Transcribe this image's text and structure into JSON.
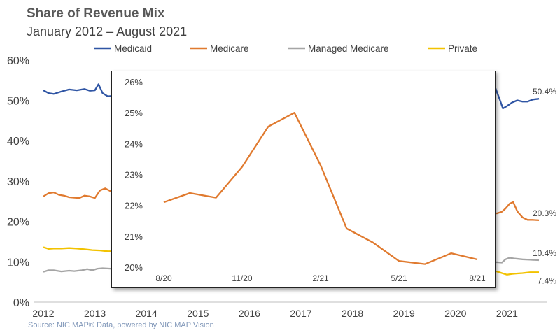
{
  "chart": {
    "title": "Share of Revenue Mix",
    "subtitle": "January 2012 – August 2021",
    "source": "Source: NIC MAP® Data, powered by NIC MAP Vision"
  },
  "chart_data": [
    {
      "type": "line",
      "title": "Share of Revenue Mix",
      "subtitle": "January 2012 – August 2021",
      "ylim": [
        0,
        60
      ],
      "y_ticks": [
        "0%",
        "10%",
        "20%",
        "30%",
        "40%",
        "50%",
        "60%"
      ],
      "x_ticks": [
        "2012",
        "2013",
        "2014",
        "2015",
        "2016",
        "2017",
        "2018",
        "2019",
        "2020",
        "2021"
      ],
      "legend_position": "top",
      "grid": false,
      "series": [
        {
          "name": "Medicaid",
          "color": "#2f55a4",
          "end_label": "50.4%",
          "segments": [
            [
              [
                2012.0,
                52.5
              ],
              [
                2012.1,
                51.8
              ],
              [
                2012.2,
                51.6
              ],
              [
                2012.35,
                52.2
              ],
              [
                2012.5,
                52.7
              ],
              [
                2012.65,
                52.5
              ],
              [
                2012.8,
                52.8
              ],
              [
                2012.9,
                52.4
              ],
              [
                2013.0,
                52.5
              ],
              [
                2013.07,
                54.0
              ],
              [
                2013.15,
                51.8
              ],
              [
                2013.25,
                51.0
              ],
              [
                2013.35,
                51.1
              ],
              [
                2013.45,
                51.8
              ],
              [
                2013.5,
                51.5
              ]
            ],
            [
              [
                2020.7,
                53.8
              ],
              [
                2020.78,
                52.9
              ],
              [
                2020.85,
                50.5
              ],
              [
                2020.92,
                48.0
              ],
              [
                2021.0,
                48.6
              ],
              [
                2021.1,
                49.5
              ],
              [
                2021.2,
                50.0
              ],
              [
                2021.3,
                49.7
              ],
              [
                2021.4,
                49.7
              ],
              [
                2021.5,
                50.2
              ],
              [
                2021.62,
                50.4
              ]
            ]
          ]
        },
        {
          "name": "Medicare",
          "color": "#e07a2f",
          "end_label": "20.3%",
          "segments": [
            [
              [
                2012.0,
                26.2
              ],
              [
                2012.1,
                27.0
              ],
              [
                2012.2,
                27.2
              ],
              [
                2012.3,
                26.6
              ],
              [
                2012.4,
                26.4
              ],
              [
                2012.5,
                26.0
              ],
              [
                2012.6,
                25.9
              ],
              [
                2012.7,
                25.8
              ],
              [
                2012.8,
                26.4
              ],
              [
                2012.9,
                26.2
              ],
              [
                2013.0,
                25.8
              ],
              [
                2013.1,
                27.7
              ],
              [
                2013.2,
                28.2
              ],
              [
                2013.3,
                27.5
              ],
              [
                2013.4,
                26.9
              ]
            ],
            [
              [
                2020.7,
                22.3
              ],
              [
                2020.8,
                22.0
              ],
              [
                2020.9,
                22.4
              ],
              [
                2020.97,
                23.2
              ],
              [
                2021.05,
                24.4
              ],
              [
                2021.12,
                24.8
              ],
              [
                2021.2,
                22.5
              ],
              [
                2021.3,
                21.0
              ],
              [
                2021.4,
                20.4
              ],
              [
                2021.5,
                20.4
              ],
              [
                2021.62,
                20.3
              ]
            ]
          ]
        },
        {
          "name": "Managed Medicare",
          "color": "#a5a5a5",
          "end_label": "10.4%",
          "segments": [
            [
              [
                2012.0,
                7.5
              ],
              [
                2012.1,
                7.9
              ],
              [
                2012.2,
                7.9
              ],
              [
                2012.35,
                7.6
              ],
              [
                2012.5,
                7.8
              ],
              [
                2012.6,
                7.7
              ],
              [
                2012.75,
                7.9
              ],
              [
                2012.85,
                8.2
              ],
              [
                2012.95,
                7.9
              ],
              [
                2013.05,
                8.3
              ],
              [
                2013.15,
                8.4
              ],
              [
                2013.3,
                8.3
              ],
              [
                2013.45,
                8.5
              ]
            ],
            [
              [
                2020.7,
                9.8
              ],
              [
                2020.8,
                9.9
              ],
              [
                2020.9,
                9.8
              ],
              [
                2020.97,
                10.6
              ],
              [
                2021.05,
                11.0
              ],
              [
                2021.15,
                10.8
              ],
              [
                2021.3,
                10.6
              ],
              [
                2021.45,
                10.5
              ],
              [
                2021.62,
                10.4
              ]
            ]
          ]
        },
        {
          "name": "Private",
          "color": "#f2c200",
          "end_label": "7.4%",
          "segments": [
            [
              [
                2012.0,
                13.6
              ],
              [
                2012.1,
                13.2
              ],
              [
                2012.2,
                13.3
              ],
              [
                2012.35,
                13.3
              ],
              [
                2012.5,
                13.4
              ],
              [
                2012.65,
                13.3
              ],
              [
                2012.8,
                13.1
              ],
              [
                2012.95,
                12.9
              ],
              [
                2013.1,
                12.8
              ],
              [
                2013.25,
                12.6
              ],
              [
                2013.4,
                12.6
              ],
              [
                2013.45,
                12.5
              ]
            ],
            [
              [
                2020.7,
                7.8
              ],
              [
                2020.8,
                7.6
              ],
              [
                2020.9,
                7.2
              ],
              [
                2021.0,
                6.8
              ],
              [
                2021.1,
                7.0
              ],
              [
                2021.2,
                7.1
              ],
              [
                2021.3,
                7.2
              ],
              [
                2021.45,
                7.4
              ],
              [
                2021.62,
                7.4
              ]
            ]
          ]
        }
      ]
    },
    {
      "type": "line",
      "series_ref": "Medicare",
      "color": "#e07a2f",
      "ylim": [
        20,
        26
      ],
      "y_ticks": [
        "20%",
        "21%",
        "22%",
        "23%",
        "24%",
        "25%",
        "26%"
      ],
      "x_ticks": [
        "8/20",
        "11/20",
        "2/21",
        "5/21",
        "8/21"
      ],
      "x": [
        "8/20",
        "9/20",
        "10/20",
        "11/20",
        "12/20",
        "1/21",
        "2/21",
        "3/21",
        "4/21",
        "5/21",
        "6/21",
        "7/21",
        "8/21"
      ],
      "values": [
        22.1,
        22.4,
        22.25,
        23.25,
        24.55,
        25.0,
        23.3,
        21.25,
        20.8,
        20.2,
        20.1,
        20.45,
        20.25
      ]
    }
  ]
}
